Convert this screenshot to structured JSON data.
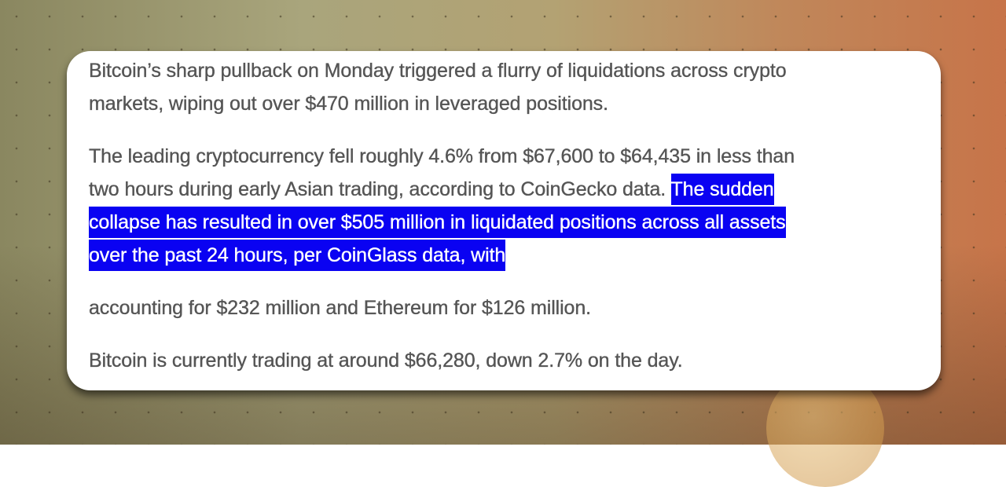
{
  "paragraphs": [
    {
      "lines": [
        [
          {
            "text": "Bitcoin’s sharp pullback on Monday triggered a flurry of liquidations across crypto",
            "highlighted": false
          }
        ],
        [
          {
            "text": "markets, wiping out over $470 million in leveraged positions.",
            "highlighted": false
          }
        ]
      ]
    },
    {
      "lines": [
        [
          {
            "text": "The leading cryptocurrency fell roughly 4.6% from $67,600 to $64,435 in less than",
            "highlighted": false
          }
        ],
        [
          {
            "text": "two hours during early Asian trading, according to CoinGecko data. ",
            "highlighted": false
          },
          {
            "text": "The sudden",
            "highlighted": true
          }
        ],
        [
          {
            "text": "collapse has resulted in over $505 million in liquidated positions across all assets",
            "highlighted": true
          }
        ],
        [
          {
            "text": "over the past 24 hours, per CoinGlass data, with",
            "highlighted": true
          }
        ]
      ]
    },
    {
      "lines": [
        [
          {
            "text": "accounting for $232 million and Ethereum for $126 million.",
            "highlighted": false
          }
        ]
      ]
    },
    {
      "lines": [
        [
          {
            "text": "Bitcoin is currently trading at around $66,280, down 2.7% on the day.",
            "highlighted": false
          }
        ]
      ]
    }
  ]
}
